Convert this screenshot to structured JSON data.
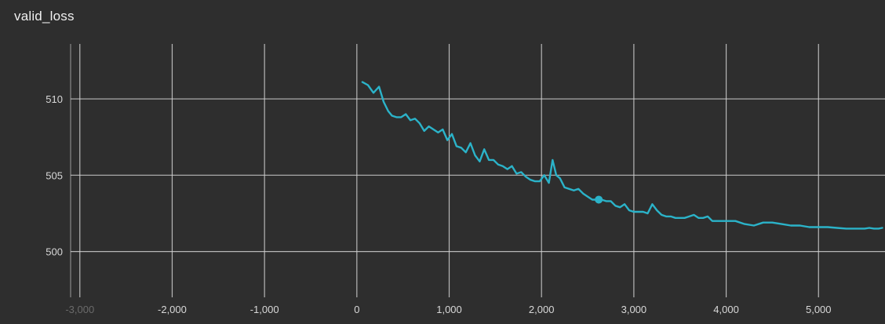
{
  "chart_data": {
    "type": "line",
    "title": "valid_loss",
    "xlabel": "",
    "ylabel": "",
    "xlim": [
      -3100,
      5720
    ],
    "ylim": [
      497,
      513.6
    ],
    "x_ticks": [
      -3000,
      -2000,
      -1000,
      0,
      1000,
      2000,
      3000,
      4000,
      5000
    ],
    "x_tick_labels": [
      "-3,000",
      "-2,000",
      "-1,000",
      "0",
      "1,000",
      "2,000",
      "3,000",
      "4,000",
      "5,000"
    ],
    "y_ticks": [
      500,
      505,
      510
    ],
    "y_tick_labels": [
      "500",
      "505",
      "510"
    ],
    "grid": true,
    "colors": {
      "background": "#2e2e2e",
      "grid": "#d0d0d0",
      "series": "#2bb3c9"
    },
    "series": [
      {
        "x": [
          60,
          120,
          180,
          240,
          290,
          340,
          380,
          430,
          480,
          530,
          580,
          630,
          680,
          730,
          780,
          830,
          880,
          930,
          980,
          1030,
          1080,
          1130,
          1180,
          1230,
          1280,
          1330,
          1380,
          1430,
          1480,
          1530,
          1580,
          1630,
          1680,
          1730,
          1780,
          1830,
          1880,
          1930,
          1980,
          2030,
          2080,
          2120,
          2160,
          2200,
          2250,
          2300,
          2350,
          2400,
          2450,
          2500,
          2550,
          2600,
          2650,
          2700,
          2750,
          2800,
          2850,
          2900,
          2950,
          3000,
          3050,
          3100,
          3150,
          3200,
          3250,
          3300,
          3350,
          3400,
          3450,
          3500,
          3550,
          3600,
          3650,
          3700,
          3750,
          3800,
          3850,
          3900,
          3950,
          4000,
          4100,
          4200,
          4300,
          4400,
          4500,
          4600,
          4700,
          4800,
          4900,
          5000,
          5100,
          5200,
          5300,
          5400,
          5500,
          5550,
          5600,
          5650,
          5690
        ],
        "y": [
          511.1,
          510.9,
          510.4,
          510.8,
          509.8,
          509.2,
          508.9,
          508.8,
          508.8,
          509.0,
          508.6,
          508.7,
          508.4,
          507.9,
          508.2,
          508.0,
          507.8,
          508.0,
          507.3,
          507.7,
          506.9,
          506.8,
          506.5,
          507.1,
          506.3,
          505.9,
          506.7,
          506.0,
          506.0,
          505.7,
          505.6,
          505.4,
          505.6,
          505.1,
          505.2,
          504.9,
          504.7,
          504.6,
          504.6,
          505.0,
          504.5,
          506.0,
          505.0,
          504.8,
          504.2,
          504.1,
          504.0,
          504.1,
          503.8,
          503.6,
          503.4,
          503.4,
          503.4,
          503.3,
          503.3,
          503.0,
          502.9,
          503.1,
          502.7,
          502.6,
          502.6,
          502.6,
          502.5,
          503.1,
          502.7,
          502.4,
          502.3,
          502.3,
          502.2,
          502.2,
          502.2,
          502.3,
          502.4,
          502.2,
          502.2,
          502.3,
          502.0,
          502.0,
          502.0,
          502.0,
          502.0,
          501.8,
          501.7,
          501.9,
          501.9,
          501.8,
          501.7,
          501.7,
          501.6,
          501.6,
          501.6,
          501.55,
          501.5,
          501.5,
          501.5,
          501.55,
          501.5,
          501.5,
          501.55
        ]
      }
    ],
    "highlight_point": {
      "x": 2620,
      "y": 503.4
    }
  }
}
